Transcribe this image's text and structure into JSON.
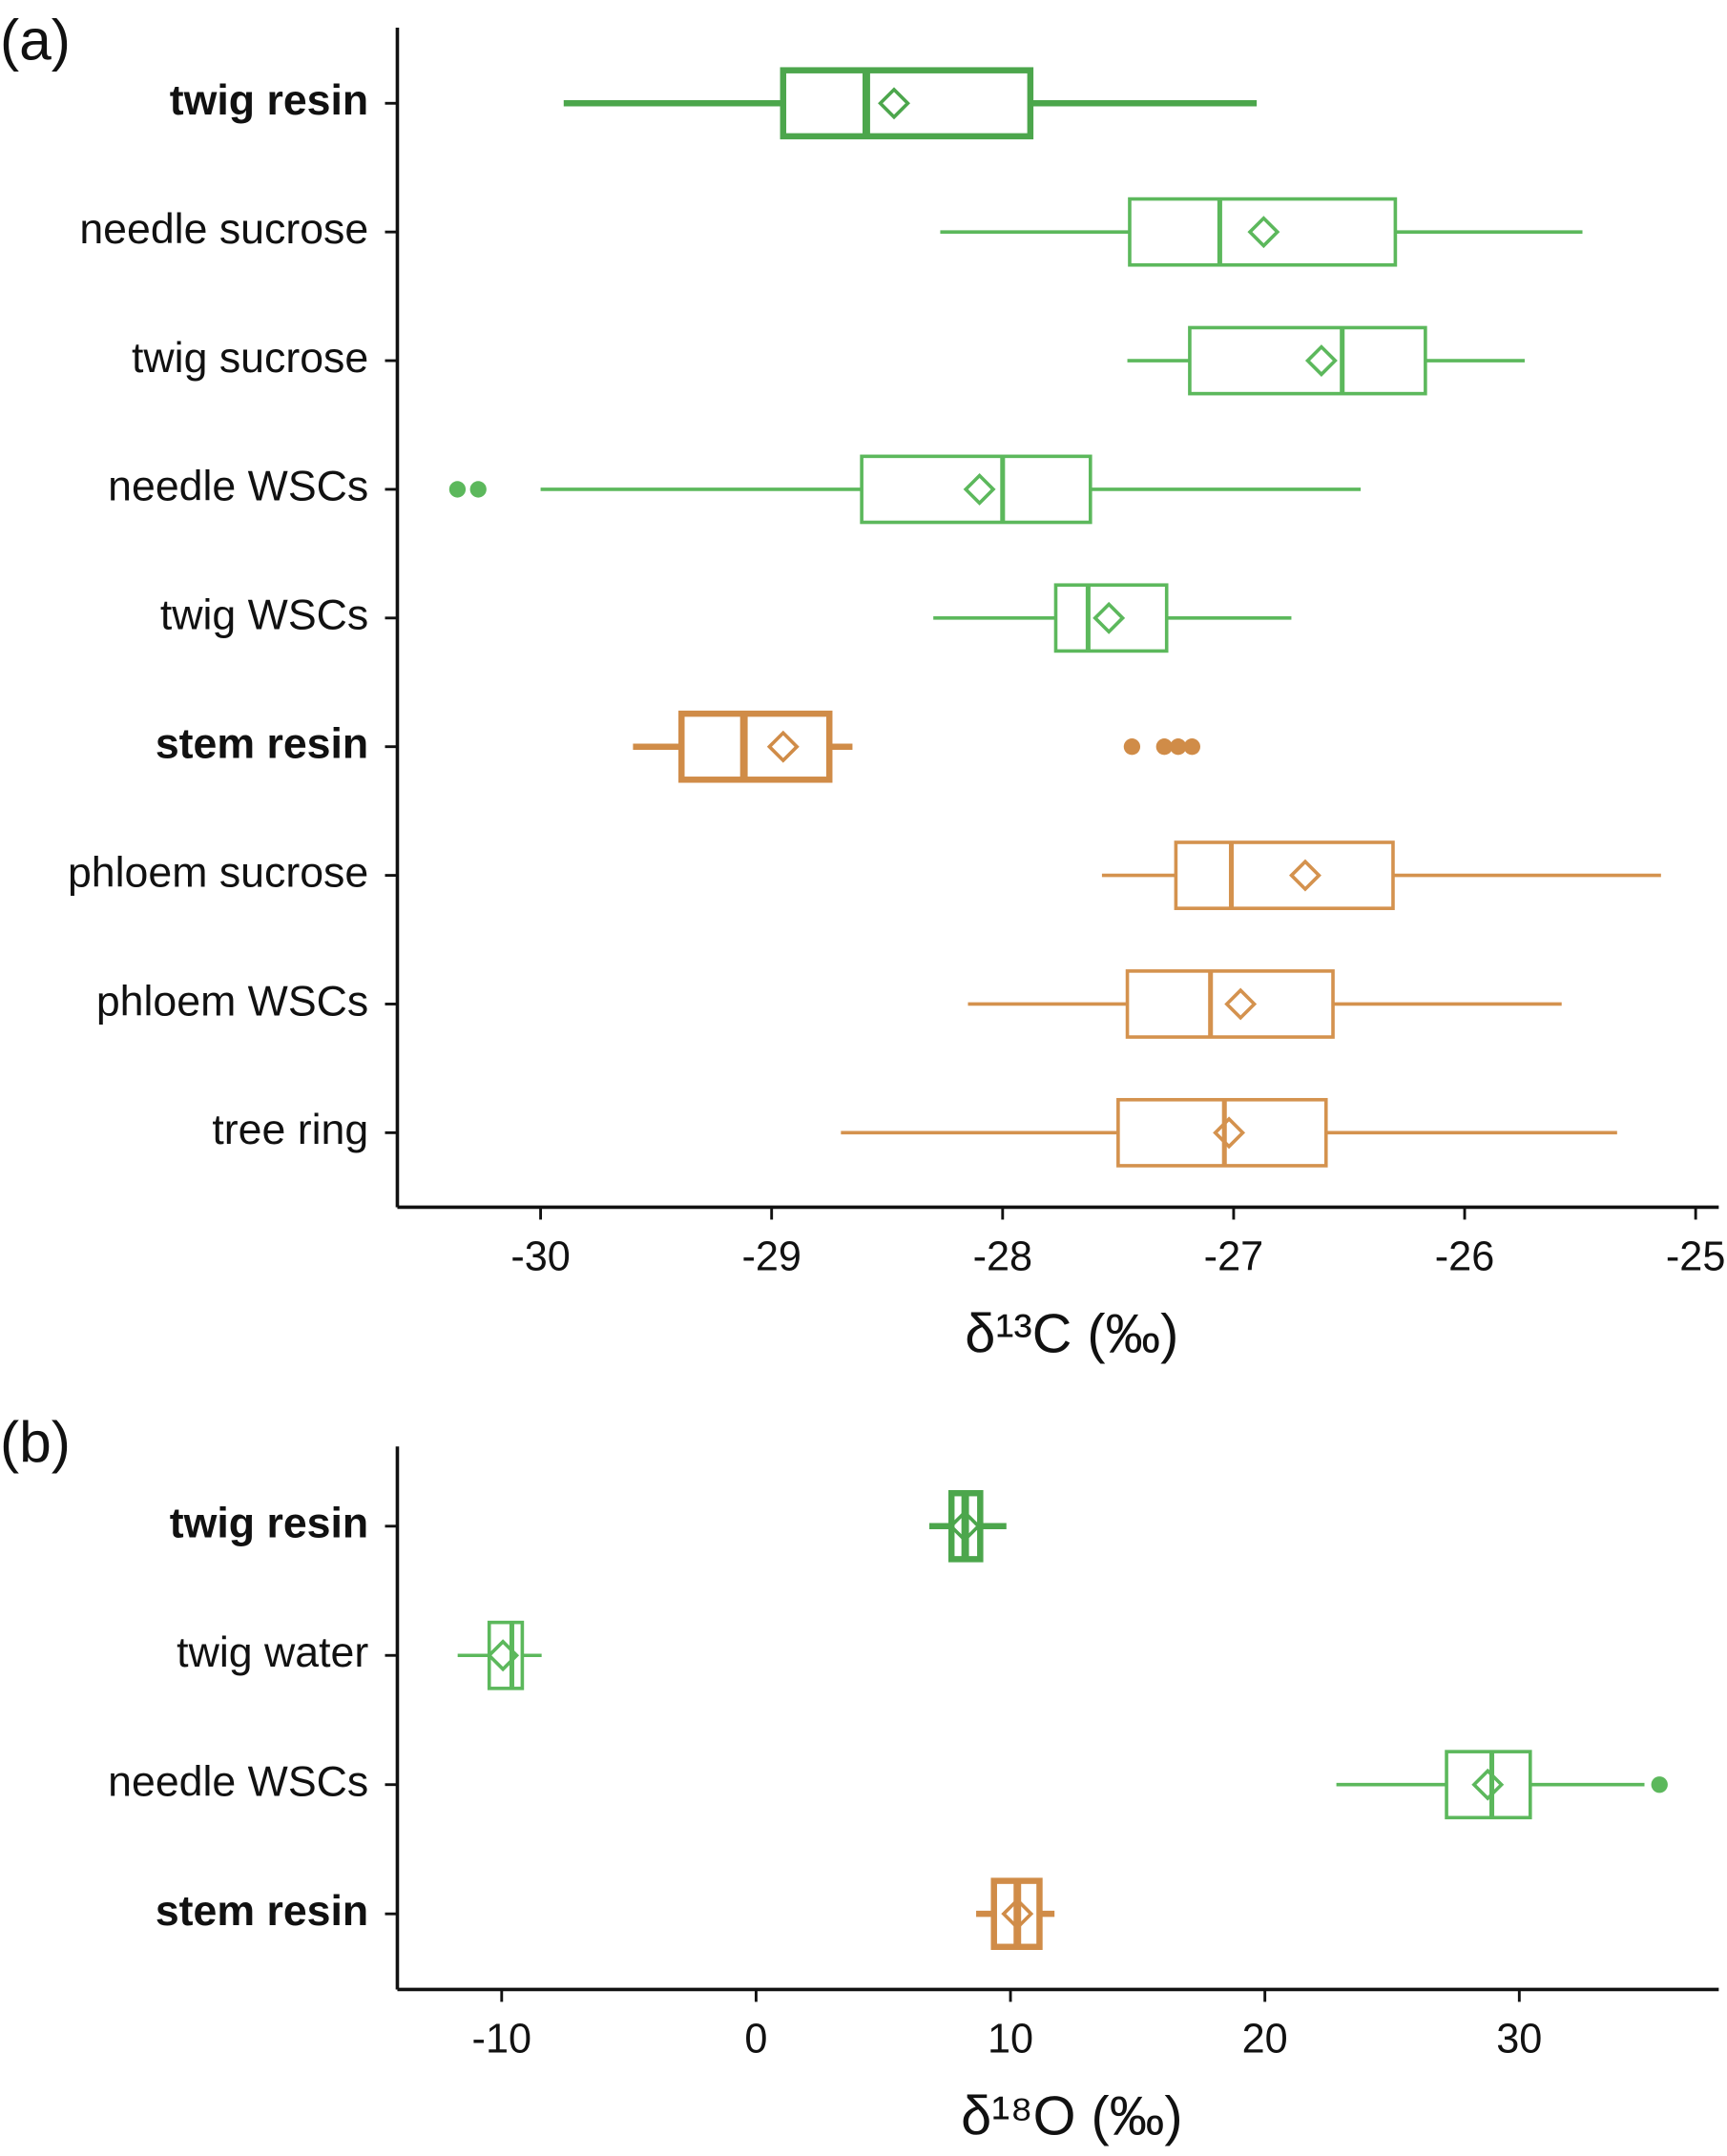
{
  "chart_data": [
    {
      "type": "boxplot",
      "panel_label": "(a)",
      "xlabel": "δ¹³C (‰)",
      "xlim": [
        -30.62,
        -24.9
      ],
      "xticks": [
        -30,
        -29,
        -28,
        -27,
        -26,
        -25
      ],
      "series": [
        {
          "name": "twig resin",
          "color": "#4ca64c",
          "bold": true,
          "whislo": -29.9,
          "q1": -28.95,
          "med": -28.59,
          "q3": -27.88,
          "whishi": -26.9,
          "mean": -28.47,
          "fliers": []
        },
        {
          "name": "needle sucrose",
          "color": "#5cb85c",
          "bold": false,
          "whislo": -28.27,
          "q1": -27.45,
          "med": -27.06,
          "q3": -26.3,
          "whishi": -25.49,
          "mean": -26.87,
          "fliers": []
        },
        {
          "name": "twig sucrose",
          "color": "#5cb85c",
          "bold": false,
          "whislo": -27.46,
          "q1": -27.19,
          "med": -26.53,
          "q3": -26.17,
          "whishi": -25.74,
          "mean": -26.62,
          "fliers": []
        },
        {
          "name": "needle WSCs",
          "color": "#5cb85c",
          "bold": false,
          "whislo": -30.0,
          "q1": -28.61,
          "med": -28.0,
          "q3": -27.62,
          "whishi": -26.45,
          "mean": -28.1,
          "fliers": [
            -30.36,
            -30.27
          ]
        },
        {
          "name": "twig WSCs",
          "color": "#5cb85c",
          "bold": false,
          "whislo": -28.3,
          "q1": -27.77,
          "med": -27.63,
          "q3": -27.29,
          "whishi": -26.75,
          "mean": -27.54,
          "fliers": []
        },
        {
          "name": "stem resin",
          "color": "#d08c48",
          "bold": true,
          "whislo": -29.6,
          "q1": -29.39,
          "med": -29.12,
          "q3": -28.75,
          "whishi": -28.65,
          "mean": -28.95,
          "fliers": [
            -27.44,
            -27.3,
            -27.24,
            -27.18
          ]
        },
        {
          "name": "phloem sucrose",
          "color": "#d4924e",
          "bold": false,
          "whislo": -27.57,
          "q1": -27.25,
          "med": -27.01,
          "q3": -26.31,
          "whishi": -25.15,
          "mean": -26.69,
          "fliers": []
        },
        {
          "name": "phloem WSCs",
          "color": "#d4924e",
          "bold": false,
          "whislo": -28.15,
          "q1": -27.46,
          "med": -27.1,
          "q3": -26.57,
          "whishi": -25.58,
          "mean": -26.97,
          "fliers": []
        },
        {
          "name": "tree ring",
          "color": "#d4924e",
          "bold": false,
          "whislo": -28.7,
          "q1": -27.5,
          "med": -27.04,
          "q3": -26.6,
          "whishi": -25.34,
          "mean": -27.02,
          "fliers": []
        }
      ]
    },
    {
      "type": "boxplot",
      "panel_label": "(b)",
      "xlabel": "δ¹⁸O (‰)",
      "xlim": [
        -14.1,
        37.84
      ],
      "xticks": [
        -10,
        0,
        10,
        20,
        30
      ],
      "series": [
        {
          "name": "twig resin",
          "color": "#4ca64c",
          "bold": true,
          "whislo": 6.81,
          "q1": 7.68,
          "med": 8.22,
          "q3": 8.81,
          "whishi": 9.84,
          "mean": 8.2,
          "fliers": []
        },
        {
          "name": "twig water",
          "color": "#5cb85c",
          "bold": false,
          "whislo": -11.73,
          "q1": -10.49,
          "med": -9.6,
          "q3": -9.19,
          "whishi": -8.43,
          "mean": -9.95,
          "fliers": []
        },
        {
          "name": "needle WSCs",
          "color": "#5cb85c",
          "bold": false,
          "whislo": 22.81,
          "q1": 27.14,
          "med": 28.92,
          "q3": 30.43,
          "whishi": 34.92,
          "mean": 28.76,
          "fliers": [
            35.51
          ]
        },
        {
          "name": "stem resin",
          "color": "#d08c48",
          "bold": true,
          "whislo": 8.65,
          "q1": 9.35,
          "med": 10.27,
          "q3": 11.14,
          "whishi": 11.73,
          "mean": 10.27,
          "fliers": []
        }
      ]
    }
  ]
}
